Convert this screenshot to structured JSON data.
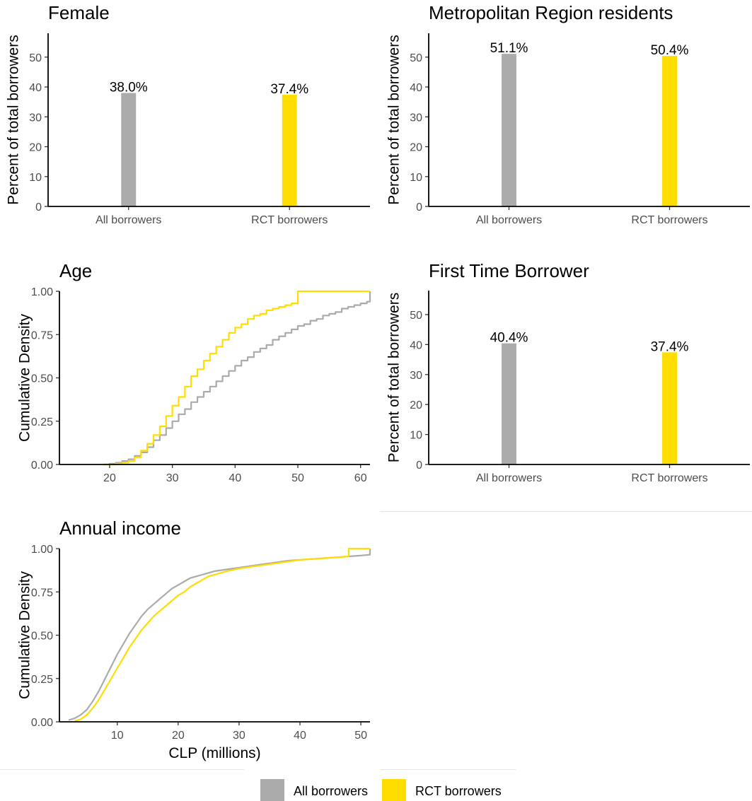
{
  "colors": {
    "all": "#ababab",
    "rct": "#ffdd00"
  },
  "legend": {
    "items": [
      {
        "label": "All borrowers",
        "color": "#ababab"
      },
      {
        "label": "RCT borrowers",
        "color": "#ffdd00"
      }
    ]
  },
  "chart_data": [
    {
      "id": "female",
      "type": "bar",
      "title": "Female",
      "ylabel": "Percent of total borrowers",
      "xlabel": "",
      "categories": [
        "All borrowers",
        "RCT borrowers"
      ],
      "values": [
        38.0,
        37.4
      ],
      "data_labels": [
        "38.0%",
        "37.4%"
      ],
      "ylim": [
        0,
        58
      ],
      "yticks": [
        0,
        10,
        20,
        30,
        40,
        50
      ],
      "ytick_labels": [
        "0",
        "10",
        "20",
        "30",
        "40",
        "50"
      ],
      "grid": false
    },
    {
      "id": "metro",
      "type": "bar",
      "title": "Metropolitan Region residents",
      "ylabel": "Percent of total borrowers",
      "xlabel": "",
      "categories": [
        "All borrowers",
        "RCT borrowers"
      ],
      "values": [
        51.1,
        50.4
      ],
      "data_labels": [
        "51.1%",
        "50.4%"
      ],
      "ylim": [
        0,
        58
      ],
      "yticks": [
        0,
        10,
        20,
        30,
        40,
        50
      ],
      "ytick_labels": [
        "0",
        "10",
        "20",
        "30",
        "40",
        "50"
      ],
      "grid": false
    },
    {
      "id": "age",
      "type": "line",
      "step": true,
      "title": "Age",
      "ylabel": "Cumulative Density",
      "xlabel": "",
      "xlim": [
        12,
        61.5
      ],
      "ylim": [
        0,
        1
      ],
      "xticks": [
        20,
        30,
        40,
        50,
        60
      ],
      "xtick_labels": [
        "20",
        "30",
        "40",
        "50",
        "60"
      ],
      "yticks": [
        0,
        0.25,
        0.5,
        0.75,
        1
      ],
      "ytick_labels": [
        "0.00",
        "0.25",
        "0.50",
        "0.75",
        "1.00"
      ],
      "grid": false,
      "series": [
        {
          "key": "all",
          "x": [
            19,
            20,
            21,
            22,
            23,
            24,
            25,
            26,
            27,
            28,
            29,
            30,
            31,
            32,
            33,
            34,
            35,
            36,
            37,
            38,
            39,
            40,
            41,
            42,
            43,
            44,
            45,
            46,
            47,
            48,
            49,
            50,
            51,
            52,
            53,
            54,
            55,
            56,
            57,
            58,
            59,
            60,
            61,
            61.5
          ],
          "y": [
            0.0,
            0.005,
            0.01,
            0.02,
            0.03,
            0.05,
            0.07,
            0.1,
            0.14,
            0.17,
            0.21,
            0.25,
            0.29,
            0.32,
            0.36,
            0.39,
            0.42,
            0.45,
            0.48,
            0.51,
            0.54,
            0.57,
            0.6,
            0.62,
            0.65,
            0.67,
            0.69,
            0.72,
            0.74,
            0.76,
            0.78,
            0.8,
            0.81,
            0.83,
            0.84,
            0.86,
            0.87,
            0.88,
            0.9,
            0.91,
            0.92,
            0.93,
            0.94,
            1.0
          ]
        },
        {
          "key": "rct",
          "x": [
            19,
            20,
            21,
            22,
            23,
            24,
            25,
            26,
            27,
            28,
            29,
            30,
            31,
            32,
            33,
            34,
            35,
            36,
            37,
            38,
            39,
            40,
            41,
            42,
            43,
            44,
            45,
            46,
            47,
            48,
            49,
            50,
            61.5
          ],
          "y": [
            0.0,
            0.0,
            0.005,
            0.01,
            0.02,
            0.04,
            0.08,
            0.12,
            0.17,
            0.22,
            0.28,
            0.34,
            0.39,
            0.45,
            0.51,
            0.55,
            0.6,
            0.64,
            0.68,
            0.72,
            0.76,
            0.79,
            0.81,
            0.84,
            0.86,
            0.87,
            0.89,
            0.9,
            0.91,
            0.92,
            0.93,
            1.0,
            1.0
          ]
        }
      ]
    },
    {
      "id": "first_time",
      "type": "bar",
      "title": "First Time Borrower",
      "ylabel": "Percent of total borrowers",
      "xlabel": "",
      "categories": [
        "All borrowers",
        "RCT borrowers"
      ],
      "values": [
        40.4,
        37.4
      ],
      "data_labels": [
        "40.4%",
        "37.4%"
      ],
      "ylim": [
        0,
        58
      ],
      "yticks": [
        0,
        10,
        20,
        30,
        40,
        50
      ],
      "ytick_labels": [
        "0",
        "10",
        "20",
        "30",
        "40",
        "50"
      ],
      "grid": false
    },
    {
      "id": "income",
      "type": "line",
      "step": false,
      "title": "Annual income",
      "ylabel": "Cumulative Density",
      "xlabel": "CLP (millions)",
      "xlim": [
        0.5,
        51.5
      ],
      "ylim": [
        0,
        1
      ],
      "xticks": [
        10,
        20,
        30,
        40,
        50
      ],
      "xtick_labels": [
        "10",
        "20",
        "30",
        "40",
        "50"
      ],
      "yticks": [
        0,
        0.25,
        0.5,
        0.75,
        1
      ],
      "ytick_labels": [
        "0.00",
        "0.25",
        "0.50",
        "0.75",
        "1.00"
      ],
      "grid": false,
      "series": [
        {
          "key": "all",
          "x": [
            2,
            3,
            4,
            5,
            6,
            7,
            8,
            9,
            10,
            11,
            12,
            13,
            14,
            15,
            16,
            17,
            18,
            19,
            20,
            21,
            22,
            23,
            24,
            25,
            26,
            28,
            30,
            32,
            34,
            36,
            38,
            40,
            42,
            44,
            46,
            48,
            50,
            51.5,
            51.5
          ],
          "y": [
            0.01,
            0.02,
            0.04,
            0.07,
            0.12,
            0.18,
            0.25,
            0.32,
            0.39,
            0.45,
            0.51,
            0.56,
            0.61,
            0.65,
            0.68,
            0.71,
            0.74,
            0.77,
            0.79,
            0.81,
            0.83,
            0.84,
            0.85,
            0.86,
            0.87,
            0.88,
            0.89,
            0.9,
            0.91,
            0.92,
            0.93,
            0.935,
            0.94,
            0.945,
            0.95,
            0.955,
            0.96,
            0.965,
            1.0
          ]
        },
        {
          "key": "rct",
          "x": [
            3,
            4,
            5,
            6,
            7,
            8,
            9,
            10,
            11,
            12,
            13,
            14,
            15,
            16,
            17,
            18,
            19,
            20,
            21,
            22,
            23,
            24,
            25,
            26,
            28,
            30,
            32,
            34,
            36,
            38,
            40,
            42,
            44,
            46,
            48,
            48,
            51.5
          ],
          "y": [
            0.005,
            0.015,
            0.04,
            0.08,
            0.13,
            0.19,
            0.25,
            0.31,
            0.37,
            0.43,
            0.48,
            0.53,
            0.57,
            0.61,
            0.64,
            0.67,
            0.7,
            0.73,
            0.75,
            0.78,
            0.8,
            0.82,
            0.84,
            0.85,
            0.87,
            0.885,
            0.895,
            0.905,
            0.915,
            0.925,
            0.935,
            0.94,
            0.945,
            0.95,
            0.955,
            1.0,
            1.0
          ]
        }
      ]
    }
  ]
}
